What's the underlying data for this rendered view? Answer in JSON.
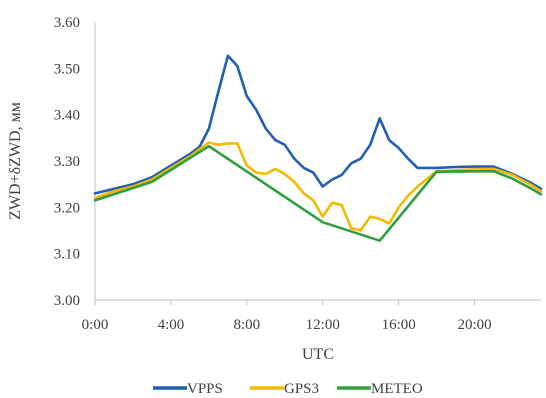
{
  "chart_data": {
    "type": "line",
    "title": "",
    "xlabel": "UTC",
    "ylabel": "ZWD+δZWD, мм",
    "xlim": [
      0,
      23.5
    ],
    "ylim": [
      3.0,
      3.6
    ],
    "x_ticks": [
      0,
      4,
      8,
      12,
      16,
      20
    ],
    "x_tick_labels": [
      "0:00",
      "4:00",
      "8:00",
      "12:00",
      "16:00",
      "20:00"
    ],
    "y_ticks": [
      3.0,
      3.1,
      3.2,
      3.3,
      3.4,
      3.5,
      3.6
    ],
    "y_tick_labels": [
      "3.00",
      "3.10",
      "3.20",
      "3.30",
      "3.40",
      "3.50",
      "3.60"
    ],
    "grid": false,
    "legend_position": "bottom",
    "series": [
      {
        "name": "VPPS",
        "color": "#1F5FB4",
        "x": [
          0,
          1,
          2,
          3,
          4,
          5,
          5.5,
          6,
          6.5,
          7,
          7.5,
          8,
          8.5,
          9,
          9.5,
          10,
          10.5,
          11,
          11.5,
          12,
          12.5,
          13,
          13.5,
          14,
          14.5,
          15,
          15.5,
          16,
          16.5,
          17,
          18,
          19,
          20,
          21,
          22,
          23,
          23.5
        ],
        "y": [
          3.23,
          3.24,
          3.25,
          3.265,
          3.29,
          3.315,
          3.33,
          3.37,
          3.45,
          3.527,
          3.505,
          3.44,
          3.41,
          3.37,
          3.345,
          3.335,
          3.305,
          3.285,
          3.275,
          3.245,
          3.26,
          3.27,
          3.295,
          3.305,
          3.335,
          3.392,
          3.345,
          3.328,
          3.305,
          3.285,
          3.285,
          3.287,
          3.288,
          3.288,
          3.272,
          3.252,
          3.24
        ]
      },
      {
        "name": "GPS3",
        "color": "#F5B800",
        "x": [
          0,
          1,
          2,
          3,
          4,
          5,
          5.5,
          6,
          6.5,
          7,
          7.5,
          8,
          8.5,
          9,
          9.5,
          10,
          10.5,
          11,
          11.5,
          12,
          12.5,
          13,
          13.5,
          14,
          14.5,
          15,
          15.5,
          16,
          16.5,
          17,
          18,
          19,
          20,
          21,
          22,
          23,
          23.5
        ],
        "y": [
          3.22,
          3.235,
          3.245,
          3.26,
          3.285,
          3.31,
          3.325,
          3.34,
          3.335,
          3.338,
          3.338,
          3.29,
          3.275,
          3.272,
          3.283,
          3.272,
          3.255,
          3.23,
          3.215,
          3.18,
          3.21,
          3.205,
          3.155,
          3.15,
          3.18,
          3.175,
          3.165,
          3.2,
          3.225,
          3.245,
          3.278,
          3.28,
          3.282,
          3.283,
          3.27,
          3.248,
          3.235
        ]
      },
      {
        "name": "METEO",
        "color": "#2E9E3E",
        "x": [
          0,
          3,
          6,
          9,
          12,
          15,
          18,
          21,
          22,
          23,
          23.5
        ],
        "y": [
          3.215,
          3.255,
          3.332,
          3.25,
          3.168,
          3.128,
          3.277,
          3.278,
          3.262,
          3.24,
          3.228
        ]
      }
    ]
  }
}
